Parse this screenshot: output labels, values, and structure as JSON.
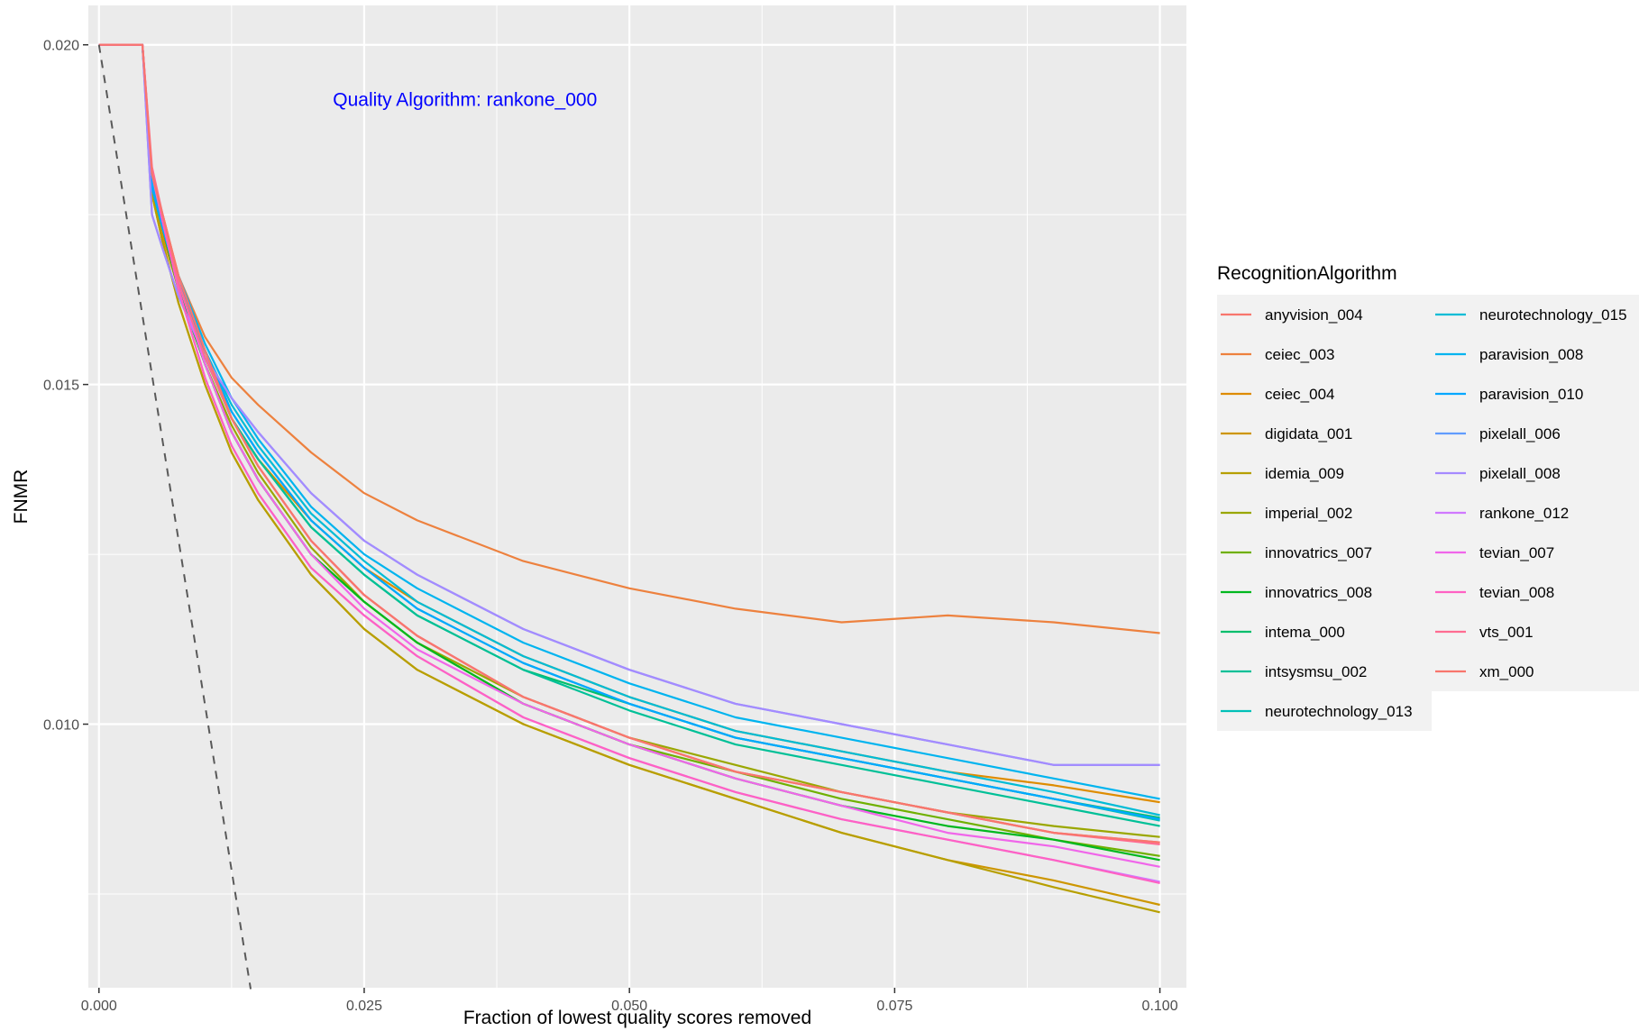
{
  "chart_data": {
    "type": "line",
    "title": "",
    "xlabel": "Fraction of lowest quality scores removed",
    "ylabel": "FNMR",
    "xlim": [
      -0.001,
      0.1025
    ],
    "ylim": [
      0.00612,
      0.02058
    ],
    "x_ticks": [
      0.0,
      0.025,
      0.05,
      0.075,
      0.1
    ],
    "x_tick_labels": [
      "0.000",
      "0.025",
      "0.050",
      "0.075",
      "0.100"
    ],
    "y_ticks": [
      0.01,
      0.015,
      0.02
    ],
    "y_tick_labels": [
      "0.010",
      "0.015",
      "0.020"
    ],
    "grid": true,
    "panel_background": "#ebebeb",
    "annotation": {
      "text": "Quality Algorithm: rankone_000",
      "x": 0.0345,
      "y": 0.0191,
      "color": "#0000ff"
    },
    "reference_line": {
      "style": "dashed",
      "color": "#595959",
      "x": [
        0.0,
        0.0143
      ],
      "y": [
        0.02,
        0.0061
      ]
    },
    "legend": {
      "title": "RecognitionAlgorithm",
      "position": "right",
      "columns": 2
    },
    "x": [
      0,
      0.0041,
      0.005,
      0.006,
      0.0075,
      0.01,
      0.0125,
      0.015,
      0.02,
      0.025,
      0.03,
      0.04,
      0.05,
      0.06,
      0.07,
      0.08,
      0.09,
      0.1
    ],
    "series": [
      {
        "name": "anyvision_004",
        "color": "#F8766D",
        "values": [
          0.02,
          0.02,
          0.0181,
          0.0175,
          0.0166,
          0.0155,
          0.0145,
          0.0138,
          0.0127,
          0.0119,
          0.0113,
          0.0104,
          0.0098,
          0.0093,
          0.009,
          0.0087,
          0.0084,
          0.00826
        ]
      },
      {
        "name": "ceiec_003",
        "color": "#ED813E",
        "values": [
          0.02,
          0.02,
          0.018,
          0.0175,
          0.0166,
          0.0157,
          0.0151,
          0.0147,
          0.014,
          0.0134,
          0.013,
          0.0124,
          0.012,
          0.0117,
          0.0115,
          0.0116,
          0.0115,
          0.01134
        ]
      },
      {
        "name": "ceiec_004",
        "color": "#DE8C00",
        "values": [
          0.02,
          0.02,
          0.0178,
          0.0172,
          0.0164,
          0.0155,
          0.0145,
          0.0139,
          0.013,
          0.0123,
          0.0118,
          0.011,
          0.0104,
          0.0099,
          0.0096,
          0.0093,
          0.0091,
          0.00885
        ]
      },
      {
        "name": "digidata_001",
        "color": "#CD9600",
        "values": [
          0.02,
          0.02,
          0.0178,
          0.0171,
          0.0162,
          0.015,
          0.014,
          0.0133,
          0.0122,
          0.0114,
          0.0108,
          0.01,
          0.0094,
          0.0089,
          0.0084,
          0.008,
          0.0077,
          0.00734
        ]
      },
      {
        "name": "idemia_009",
        "color": "#B79F00",
        "values": [
          0.02,
          0.02,
          0.0178,
          0.0171,
          0.0162,
          0.015,
          0.014,
          0.0133,
          0.0122,
          0.0114,
          0.0108,
          0.01,
          0.0094,
          0.0089,
          0.0084,
          0.008,
          0.0076,
          0.00723
        ]
      },
      {
        "name": "imperial_002",
        "color": "#9AA700",
        "values": [
          0.02,
          0.02,
          0.0179,
          0.0173,
          0.0164,
          0.0153,
          0.0144,
          0.0137,
          0.0126,
          0.0118,
          0.0112,
          0.0104,
          0.0098,
          0.0094,
          0.009,
          0.0087,
          0.0085,
          0.00834
        ]
      },
      {
        "name": "innovatrics_007",
        "color": "#6FB000",
        "values": [
          0.02,
          0.02,
          0.0179,
          0.0173,
          0.0164,
          0.0153,
          0.0143,
          0.0136,
          0.0125,
          0.0118,
          0.0112,
          0.0103,
          0.0097,
          0.0093,
          0.0089,
          0.0086,
          0.0083,
          0.00806
        ]
      },
      {
        "name": "innovatrics_008",
        "color": "#00B81F",
        "values": [
          0.02,
          0.02,
          0.0179,
          0.0173,
          0.0164,
          0.0153,
          0.0143,
          0.0136,
          0.0125,
          0.0118,
          0.0112,
          0.0103,
          0.0097,
          0.0092,
          0.0088,
          0.0085,
          0.0083,
          0.008
        ]
      },
      {
        "name": "intema_000",
        "color": "#00BE6C",
        "values": [
          0.02,
          0.02,
          0.0179,
          0.0173,
          0.0165,
          0.0154,
          0.0145,
          0.0139,
          0.0129,
          0.0122,
          0.0116,
          0.0108,
          0.0103,
          0.0098,
          0.0095,
          0.0092,
          0.0089,
          0.00862
        ]
      },
      {
        "name": "intsysmsu_002",
        "color": "#00C097",
        "values": [
          0.02,
          0.02,
          0.0179,
          0.0173,
          0.0165,
          0.0154,
          0.0145,
          0.0139,
          0.0129,
          0.0122,
          0.0116,
          0.0108,
          0.0102,
          0.0097,
          0.0094,
          0.0091,
          0.0088,
          0.0085
        ]
      },
      {
        "name": "neurotechnology_013",
        "color": "#00C0B8",
        "values": [
          0.02,
          0.02,
          0.0179,
          0.0173,
          0.0165,
          0.0155,
          0.0146,
          0.014,
          0.013,
          0.0123,
          0.0117,
          0.0109,
          0.0103,
          0.0098,
          0.0095,
          0.0092,
          0.0089,
          0.00858
        ]
      },
      {
        "name": "neurotechnology_015",
        "color": "#00BCD6",
        "values": [
          0.02,
          0.02,
          0.0179,
          0.0173,
          0.0165,
          0.0155,
          0.0147,
          0.0141,
          0.0131,
          0.0124,
          0.0118,
          0.011,
          0.0104,
          0.0099,
          0.0096,
          0.0093,
          0.009,
          0.00866
        ]
      },
      {
        "name": "paravision_008",
        "color": "#00B4EF",
        "values": [
          0.02,
          0.02,
          0.018,
          0.0174,
          0.0166,
          0.0156,
          0.0148,
          0.0142,
          0.0132,
          0.0125,
          0.012,
          0.0112,
          0.0106,
          0.0101,
          0.0098,
          0.0095,
          0.0092,
          0.0089
        ]
      },
      {
        "name": "paravision_010",
        "color": "#00A8FF",
        "values": [
          0.02,
          0.02,
          0.0179,
          0.0173,
          0.0165,
          0.0155,
          0.0146,
          0.014,
          0.013,
          0.0123,
          0.0117,
          0.0109,
          0.0103,
          0.0098,
          0.0095,
          0.0092,
          0.0089,
          0.0086
        ]
      },
      {
        "name": "pixelall_006",
        "color": "#619CFF",
        "values": [
          0.02,
          0.02,
          0.0175,
          0.017,
          0.0163,
          0.0154,
          0.0148,
          0.0143,
          0.0134,
          0.0127,
          0.0122,
          0.0114,
          0.0108,
          0.0103,
          0.01,
          0.0097,
          0.0094,
          0.0094
        ]
      },
      {
        "name": "pixelall_008",
        "color": "#A58AFF",
        "values": [
          0.02,
          0.02,
          0.0175,
          0.017,
          0.0163,
          0.0154,
          0.0148,
          0.0143,
          0.0134,
          0.0127,
          0.0122,
          0.0114,
          0.0108,
          0.0103,
          0.01,
          0.0097,
          0.0094,
          0.0094
        ]
      },
      {
        "name": "rankone_012",
        "color": "#D078FF",
        "values": [
          0.02,
          0.02,
          0.0181,
          0.0174,
          0.0164,
          0.0151,
          0.0141,
          0.0134,
          0.0123,
          0.0116,
          0.011,
          0.0101,
          0.0095,
          0.009,
          0.0086,
          0.0083,
          0.008,
          0.00768
        ]
      },
      {
        "name": "tevian_007",
        "color": "#F066EA",
        "values": [
          0.02,
          0.02,
          0.0181,
          0.0175,
          0.0165,
          0.0153,
          0.0143,
          0.0136,
          0.0125,
          0.0117,
          0.0111,
          0.0103,
          0.0097,
          0.0092,
          0.0088,
          0.0084,
          0.0082,
          0.0079
        ]
      },
      {
        "name": "tevian_008",
        "color": "#FF61C3",
        "values": [
          0.02,
          0.02,
          0.0181,
          0.0174,
          0.0164,
          0.0151,
          0.0141,
          0.0134,
          0.0123,
          0.0116,
          0.011,
          0.0101,
          0.0095,
          0.009,
          0.0086,
          0.0083,
          0.008,
          0.00766
        ]
      },
      {
        "name": "vts_001",
        "color": "#FF6C91",
        "values": [
          0.02,
          0.02,
          0.0182,
          0.0175,
          0.0165,
          0.0154,
          0.0145,
          0.0138,
          0.0127,
          0.0119,
          0.0113,
          0.0104,
          0.0098,
          0.0093,
          0.009,
          0.0087,
          0.0084,
          0.00823
        ]
      },
      {
        "name": "xm_000",
        "color": "#F8766D",
        "values": [
          0.02,
          0.02,
          0.0181,
          0.0175,
          0.0166,
          0.0155,
          0.0145,
          0.0138,
          0.0127,
          0.0119,
          0.0113,
          0.0104,
          0.0098,
          0.0093,
          0.009,
          0.0087,
          0.0084,
          0.00826
        ]
      }
    ]
  }
}
